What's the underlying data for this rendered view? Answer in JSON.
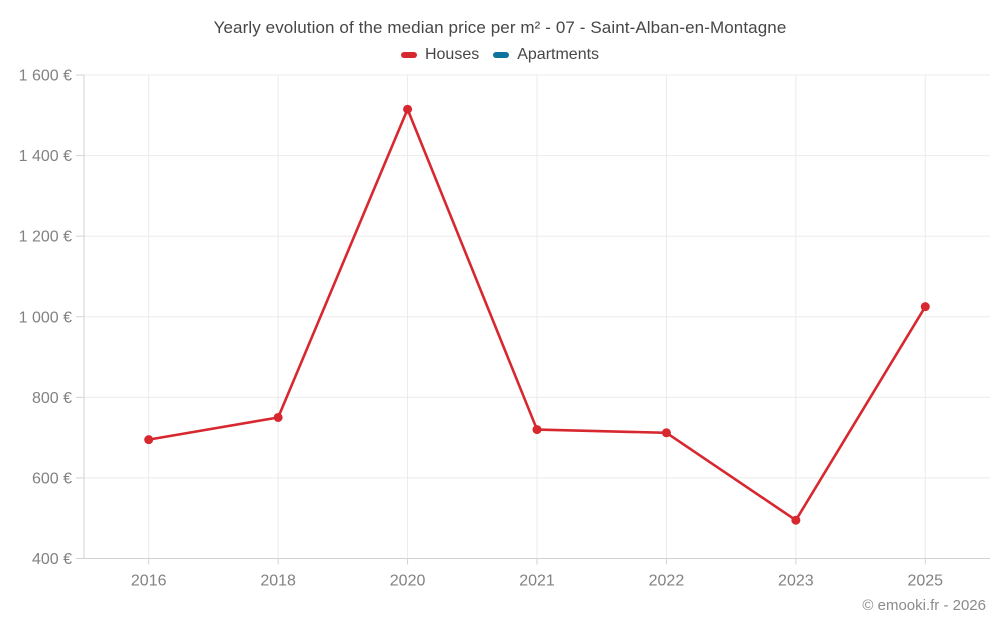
{
  "footer": {
    "credit": "© emooki.fr - 2026"
  },
  "colors": {
    "houses": "#d7282f",
    "apartments": "#0f729f",
    "grid": "#ebebeb",
    "axis": "#d2d2d2",
    "tick_label": "#828282",
    "title_text": "#474747",
    "background": "#ffffff"
  },
  "chart_data": {
    "type": "line",
    "title": "Yearly evolution of the median price per m² - 07 - Saint-Alban-en-Montagne",
    "categories": [
      "2016",
      "2018",
      "2020",
      "2021",
      "2022",
      "2023",
      "2025"
    ],
    "series": [
      {
        "name": "Houses",
        "color": "#d7282f",
        "values": [
          695,
          750,
          1515,
          720,
          712,
          495,
          1025
        ]
      },
      {
        "name": "Apartments",
        "color": "#0f729f",
        "values": []
      }
    ],
    "xlabel": "",
    "ylabel": "",
    "ylim": [
      400,
      1600
    ],
    "ytick_interval": 200,
    "ytick_labels": [
      "400 €",
      "600 €",
      "800 €",
      "1 000 €",
      "1 200 €",
      "1 400 €",
      "1 600 €"
    ],
    "grid": true,
    "legend_position": "top"
  }
}
